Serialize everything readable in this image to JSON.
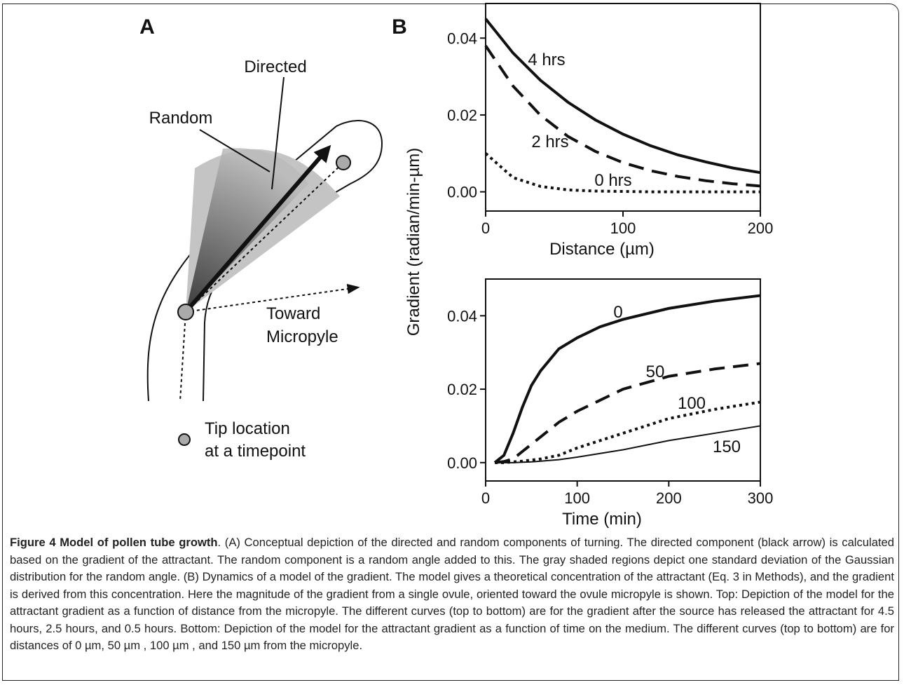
{
  "panel_a": {
    "label": "A",
    "directed": "Directed",
    "random": "Random",
    "toward": "Toward",
    "micropyle": "Micropyle",
    "tip_line1": "Tip location",
    "tip_line2": "at a timepoint"
  },
  "panel_b": {
    "label": "B",
    "ylabel": "Gradient (radian/min-µm)"
  },
  "chart_data": [
    {
      "type": "line",
      "xlabel": "Distance (µm)",
      "x": [
        0,
        20,
        40,
        60,
        80,
        100,
        120,
        140,
        160,
        180,
        200
      ],
      "series": [
        {
          "name": "4 hrs",
          "color": "#111111",
          "style": "solid",
          "width": 4,
          "values": [
            0.045,
            0.0361,
            0.029,
            0.0233,
            0.0187,
            0.015,
            0.012,
            0.0096,
            0.0078,
            0.0062,
            0.005
          ]
        },
        {
          "name": "2 hrs",
          "color": "#111111",
          "style": "dashed",
          "width": 4,
          "values": [
            0.038,
            0.0275,
            0.0199,
            0.0144,
            0.0105,
            0.0076,
            0.0055,
            0.004,
            0.0029,
            0.0021,
            0.0015
          ]
        },
        {
          "name": "0 hrs",
          "color": "#111111",
          "style": "dotted",
          "width": 4,
          "values": [
            0.01,
            0.0037,
            0.0014,
            0.0005,
            0.0002,
            0.0001,
            0,
            0,
            0,
            0,
            0
          ]
        }
      ],
      "xlim": [
        0,
        200
      ],
      "xticks": [
        0,
        100,
        200
      ],
      "ylim": [
        -0.005,
        0.049
      ],
      "yticks": [
        {
          "value": 0,
          "label": "0.00"
        },
        {
          "value": 0.02,
          "label": "0.02"
        },
        {
          "value": 0.04,
          "label": "0.04"
        }
      ],
      "grid": false
    },
    {
      "type": "line",
      "xlabel": "Time (min)",
      "x": [
        10,
        20,
        30,
        40,
        50,
        60,
        80,
        100,
        125,
        150,
        200,
        250,
        300
      ],
      "series": [
        {
          "name": "0",
          "color": "#111111",
          "style": "solid",
          "width": 4,
          "values": [
            0,
            0.002,
            0.008,
            0.015,
            0.021,
            0.025,
            0.031,
            0.034,
            0.037,
            0.039,
            0.042,
            0.044,
            0.0455
          ]
        },
        {
          "name": "50",
          "color": "#111111",
          "style": "dashed",
          "width": 4,
          "values": [
            0,
            0.0003,
            0.001,
            0.003,
            0.005,
            0.007,
            0.011,
            0.014,
            0.017,
            0.02,
            0.0235,
            0.0255,
            0.027
          ]
        },
        {
          "name": "100",
          "color": "#111111",
          "style": "dotted",
          "width": 4,
          "values": [
            0,
            0,
            0.0002,
            0.0004,
            0.0007,
            0.001,
            0.002,
            0.004,
            0.006,
            0.008,
            0.012,
            0.0145,
            0.0165
          ]
        },
        {
          "name": "150",
          "color": "#111111",
          "style": "solid",
          "width": 2,
          "values": [
            0,
            0,
            0,
            0.0001,
            0.0002,
            0.0004,
            0.0008,
            0.0015,
            0.0025,
            0.0035,
            0.006,
            0.008,
            0.01
          ]
        }
      ],
      "xlim": [
        0,
        300
      ],
      "xticks": [
        0,
        100,
        200,
        300
      ],
      "ylim": [
        -0.005,
        0.05
      ],
      "yticks": [
        {
          "value": 0,
          "label": "0.00"
        },
        {
          "value": 0.02,
          "label": "0.02"
        },
        {
          "value": 0.04,
          "label": "0.04"
        }
      ],
      "grid": false
    }
  ],
  "caption": {
    "title": "Figure 4 Model of pollen tube growth",
    "text": ". (A) Conceptual depiction of the directed and random components of turning. The directed component (black arrow) is calculated based on the gradient of the attractant. The random component is a random angle added to this. The gray shaded regions depict one standard deviation of the Gaussian distribution for the random angle. (B) Dynamics of a model of the gradient. The model gives a theoretical concentration of the attractant (Eq. 3 in Methods), and the gradient is derived from this concentration. Here the magnitude of the gradient from a single ovule, oriented toward the ovule micropyle is shown. Top: Depiction of the model for the attractant gradient as a function of distance from the micropyle. The different curves (top to bottom) are for the gradient after the source has released the attractant for 4.5 hours, 2.5 hours, and 0.5 hours. Bottom: Depiction of the model for the attractant gradient as a function of time on the medium. The different curves (top to bottom) are for distances of 0 µm, 50 µm , 100 µm , and 150 µm from the micropyle."
  }
}
